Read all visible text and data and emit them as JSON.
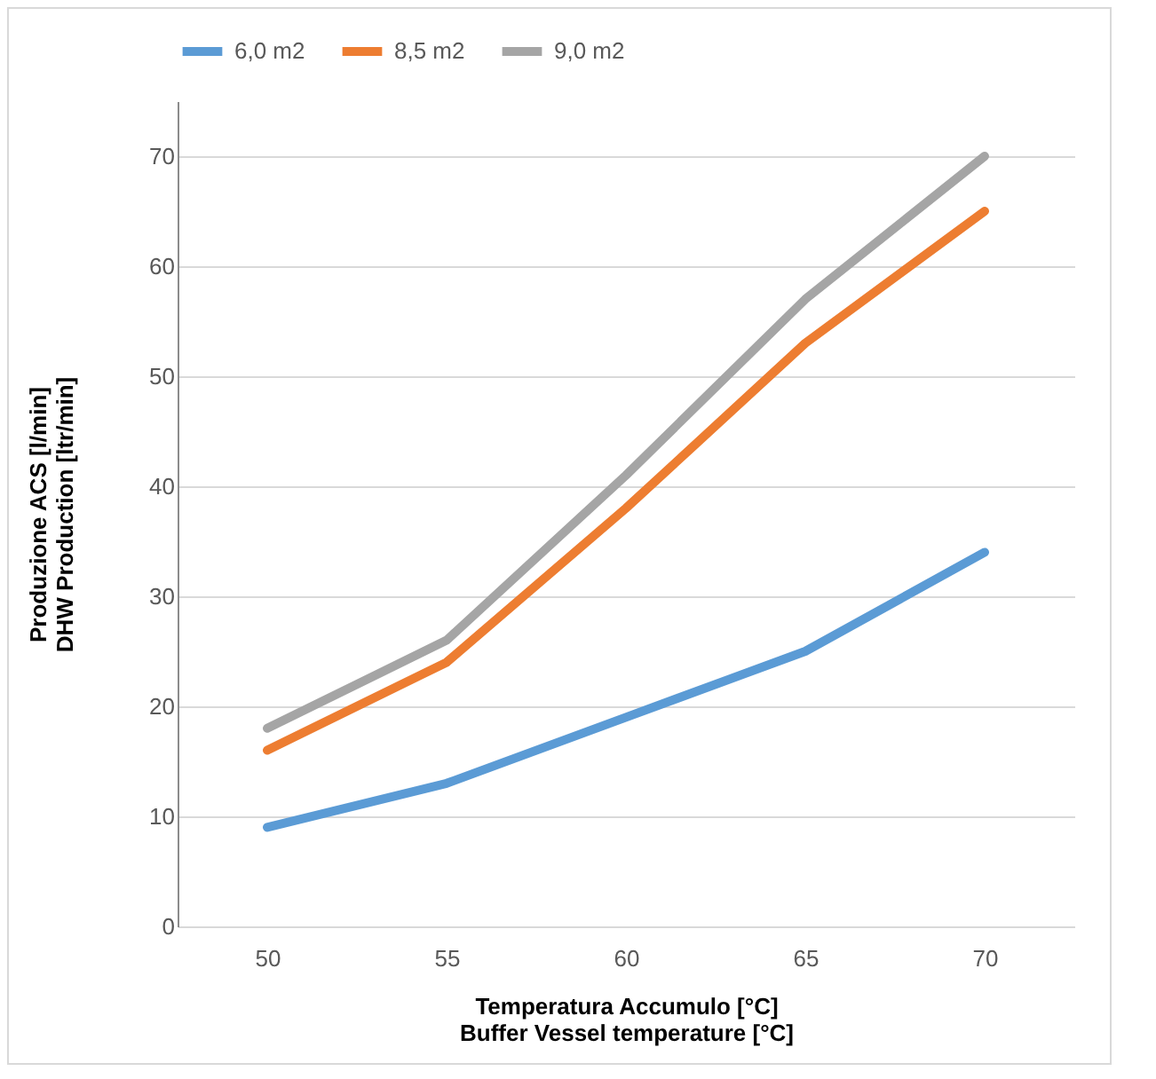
{
  "chart_data": {
    "type": "line",
    "xlabel": "Temperatura Accumulo [°C]\nBuffer Vessel temperature [°C]",
    "ylabel": "Produzione ACS [l/min]\nDHW Production [ltr/min]",
    "categories": [
      "50",
      "55",
      "60",
      "65",
      "70"
    ],
    "ylim": [
      0,
      75
    ],
    "yticks": [
      0,
      10,
      20,
      30,
      40,
      50,
      60,
      70
    ],
    "grid": "y",
    "legend": "top",
    "series": [
      {
        "name": "6,0 m2",
        "color": "#5b9bd5",
        "values": [
          9,
          13,
          19,
          25,
          34
        ]
      },
      {
        "name": "8,5 m2",
        "color": "#ed7d31",
        "values": [
          16,
          24,
          38,
          53,
          65
        ]
      },
      {
        "name": "9,0 m2",
        "color": "#a5a5a5",
        "values": [
          18,
          26,
          41,
          57,
          70
        ]
      }
    ]
  }
}
